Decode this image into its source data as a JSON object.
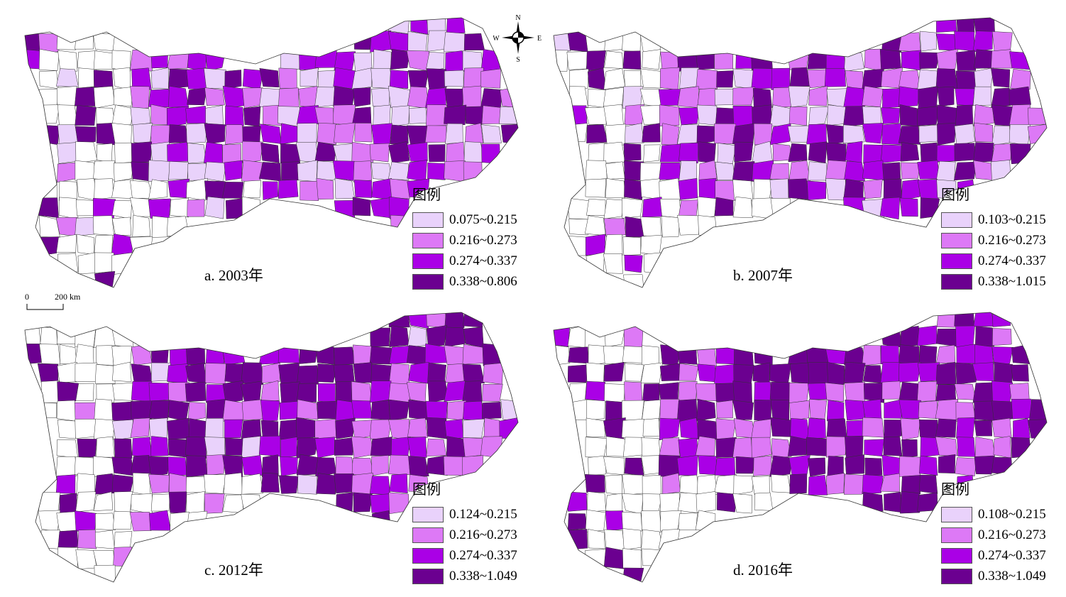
{
  "colors": [
    "#e9d2fb",
    "#dd79f6",
    "#aa00e6",
    "#6b0090"
  ],
  "legend_title": "图例",
  "panels": [
    {
      "caption": "a. 2003年",
      "classes": [
        "0.075~0.215",
        "0.216~0.273",
        "0.274~0.337",
        "0.338~0.806"
      ],
      "seed": 3
    },
    {
      "caption": "b. 2007年",
      "classes": [
        "0.103~0.215",
        "0.216~0.273",
        "0.274~0.337",
        "0.338~1.015"
      ],
      "seed": 7
    },
    {
      "caption": "c. 2012年",
      "classes": [
        "0.124~0.215",
        "0.216~0.273",
        "0.274~0.337",
        "0.338~1.049"
      ],
      "seed": 12
    },
    {
      "caption": "d. 2016年",
      "classes": [
        "0.108~0.215",
        "0.216~0.273",
        "0.274~0.337",
        "0.338~1.049"
      ],
      "seed": 16
    }
  ],
  "scale": {
    "zero": "0",
    "distance": "200 km"
  },
  "compass": {
    "n": "N",
    "s": "S",
    "e": "E",
    "w": "W"
  }
}
